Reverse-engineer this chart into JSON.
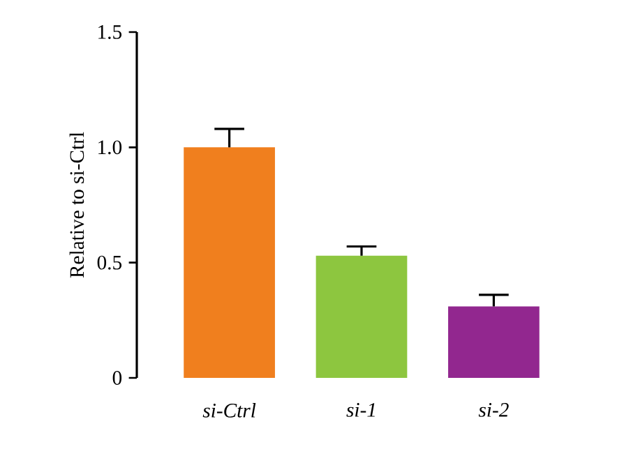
{
  "chart_data": {
    "type": "bar",
    "ylabel": "Relative to si-Ctrl",
    "categories": [
      "si-Ctrl",
      "si-1",
      "si-2"
    ],
    "values": [
      1.0,
      0.53,
      0.31
    ],
    "errors": [
      [
        1.0,
        1.08
      ],
      [
        0.53,
        0.57
      ],
      [
        0.31,
        0.36
      ]
    ],
    "colors": [
      "#f07f1e",
      "#8dc63f",
      "#92278f"
    ],
    "ylim": [
      0,
      1.5
    ],
    "yticks": [
      {
        "value": 0,
        "label": "0"
      },
      {
        "value": 0.5,
        "label": "0.5"
      },
      {
        "value": 1.0,
        "label": "1.0"
      },
      {
        "value": 1.5,
        "label": "1.5"
      }
    ],
    "grid": false
  }
}
